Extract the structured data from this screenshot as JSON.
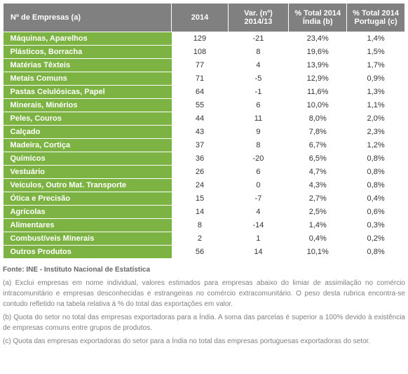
{
  "table": {
    "headers": {
      "label": "Nº de Empresas (a)",
      "col2014": "2014",
      "colVar": "Var. (nº) 2014/13",
      "colIndia": "% Total 2014 Índia (b)",
      "colPortugal": "% Total 2014 Portugal (c)"
    },
    "rows": [
      {
        "label": "Máquinas, Aparelhos",
        "y2014": "129",
        "var": "-21",
        "india": "23,4%",
        "portugal": "1,4%"
      },
      {
        "label": "Plásticos, Borracha",
        "y2014": "108",
        "var": "8",
        "india": "19,6%",
        "portugal": "1,5%"
      },
      {
        "label": "Matérias Têxteis",
        "y2014": "77",
        "var": "4",
        "india": "13,9%",
        "portugal": "1,7%"
      },
      {
        "label": "Metais Comuns",
        "y2014": "71",
        "var": "-5",
        "india": "12,9%",
        "portugal": "0,9%"
      },
      {
        "label": "Pastas Celulósicas, Papel",
        "y2014": "64",
        "var": "-1",
        "india": "11,6%",
        "portugal": "1,3%"
      },
      {
        "label": "Minerais, Minérios",
        "y2014": "55",
        "var": "6",
        "india": "10,0%",
        "portugal": "1,1%"
      },
      {
        "label": "Peles, Couros",
        "y2014": "44",
        "var": "11",
        "india": "8,0%",
        "portugal": "2,0%"
      },
      {
        "label": "Calçado",
        "y2014": "43",
        "var": "9",
        "india": "7,8%",
        "portugal": "2,3%"
      },
      {
        "label": "Madeira, Cortiça",
        "y2014": "37",
        "var": "8",
        "india": "6,7%",
        "portugal": "1,2%"
      },
      {
        "label": "Químicos",
        "y2014": "36",
        "var": "-20",
        "india": "6,5%",
        "portugal": "0,8%"
      },
      {
        "label": "Vestuário",
        "y2014": "26",
        "var": "6",
        "india": "4,7%",
        "portugal": "0,8%"
      },
      {
        "label": "Veículos, Outro Mat. Transporte",
        "y2014": "24",
        "var": "0",
        "india": "4,3%",
        "portugal": "0,8%"
      },
      {
        "label": "Ótica e Precisão",
        "y2014": "15",
        "var": "-7",
        "india": "2,7%",
        "portugal": "0,4%"
      },
      {
        "label": "Agrícolas",
        "y2014": "14",
        "var": "4",
        "india": "2,5%",
        "portugal": "0,6%"
      },
      {
        "label": "Alimentares",
        "y2014": "8",
        "var": "-14",
        "india": "1,4%",
        "portugal": "0,3%"
      },
      {
        "label": "Combustíveis Minerais",
        "y2014": "2",
        "var": "1",
        "india": "0,4%",
        "portugal": "0,2%"
      },
      {
        "label": "Outros Produtos",
        "y2014": "56",
        "var": "14",
        "india": "10,1%",
        "portugal": "0,8%"
      }
    ]
  },
  "footnotes": {
    "source": "Fonte: INE - Instituto Nacional de Estatística",
    "a": "(a) Exclui empresas em nome individual, valores estimados para empresas abaixo do limiar de assimilação no comércio intracomunitário e empresas desconhecidas e estrangeiras no comércio extracomunitário. O peso desta rubrica encontra-se contudo refletido na tabela relativa à % do total das exportações em valor.",
    "b": "(b) Quota do setor no total das empresas exportadoras para a Índia. A soma das parcelas é superior a 100% devido à existência de empresas comuns entre grupos de produtos.",
    "c": "(c) Quota das empresas exportadoras do setor para a Índia no total das empresas portuguesas exportadoras do setor."
  },
  "colors": {
    "headerBg": "#808080",
    "headerText": "#ffffff",
    "rowLabelBg": "#7cb342",
    "rowLabelText": "#ffffff",
    "cellText": "#333333",
    "footnoteText": "#808080"
  }
}
